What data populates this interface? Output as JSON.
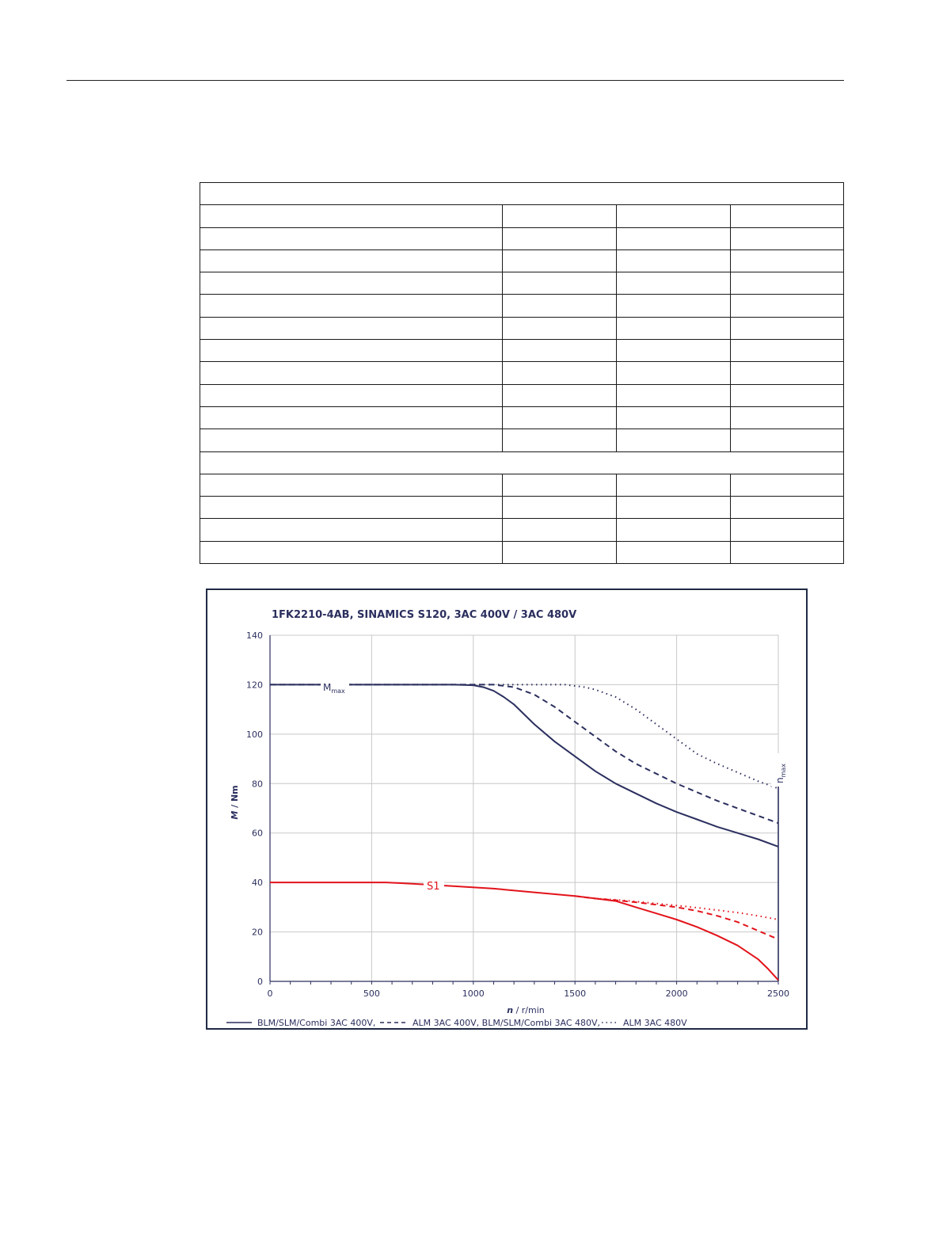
{
  "table": {
    "rows": 17
  },
  "chart_data": {
    "type": "line",
    "title": "1FK2210-4AB,  SINAMICS S120,  3AC 400V / 3AC 480V",
    "xlabel_var": "n",
    "xlabel_unit": " / r/min",
    "ylabel_var": "M",
    "ylabel_unit": " / Nm",
    "xlim": [
      0,
      2500
    ],
    "ylim": [
      0,
      140
    ],
    "xticks": [
      "0",
      "500",
      "1000",
      "1500",
      "2000",
      "2500"
    ],
    "yticks": [
      "0",
      "20",
      "40",
      "60",
      "80",
      "100",
      "120",
      "140"
    ],
    "grid": true,
    "annotations": {
      "mmax_base": "M",
      "mmax_sub": "max",
      "nmax_base": "n",
      "nmax_sub": "max",
      "s1": "S1"
    },
    "legend": [
      {
        "label": "BLM/SLM/Combi 3AC 400V,",
        "style": "solid"
      },
      {
        "label": "ALM 3AC 400V, BLM/SLM/Combi 3AC 480V,",
        "style": "dashed"
      },
      {
        "label": "ALM 3AC 480V",
        "style": "dotted"
      }
    ],
    "colors": {
      "mmax": "#2b2f5e",
      "s1": "#e3131b",
      "grid": "#c8c8c8",
      "axis": "#2b2f5e"
    },
    "series": [
      {
        "name": "BLM/SLM/Combi 3AC 400V,",
        "group": "Mmax",
        "style": "solid",
        "x": [
          0,
          900,
          1000,
          1050,
          1100,
          1150,
          1200,
          1250,
          1300,
          1400,
          1500,
          1600,
          1700,
          1800,
          1900,
          2000,
          2100,
          2200,
          2300,
          2400,
          2500
        ],
        "y": [
          120,
          120,
          119.8,
          119,
          117.5,
          115,
          112,
          108,
          104,
          97,
          91,
          85,
          80,
          76,
          72,
          68.5,
          65.5,
          62.5,
          60,
          57.5,
          54.5
        ]
      },
      {
        "name": "ALM 3AC 400V, BLM/SLM/Combi 3AC 480V,",
        "group": "Mmax",
        "style": "dashed",
        "x": [
          0,
          1000,
          1100,
          1200,
          1300,
          1400,
          1500,
          1600,
          1700,
          1800,
          1900,
          2000,
          2100,
          2200,
          2300,
          2400,
          2500
        ],
        "y": [
          120,
          120,
          120,
          119,
          116,
          111,
          105,
          99,
          93,
          88,
          84,
          80,
          76.5,
          73,
          70,
          67,
          64
        ]
      },
      {
        "name": "ALM 3AC 480V",
        "group": "Mmax",
        "style": "dotted",
        "x": [
          0,
          1000,
          1300,
          1450,
          1550,
          1600,
          1700,
          1800,
          1900,
          2000,
          2100,
          2200,
          2300,
          2400,
          2500
        ],
        "y": [
          120,
          120,
          120,
          120,
          119,
          118,
          115,
          110,
          104,
          98,
          92,
          88,
          84.5,
          81,
          78
        ]
      },
      {
        "name": "BLM/SLM/Combi 3AC 400V,",
        "group": "S1",
        "style": "solid",
        "x": [
          0,
          570,
          700,
          900,
          1100,
          1300,
          1500,
          1600,
          1700,
          1800,
          1900,
          2000,
          2100,
          2200,
          2300,
          2400,
          2450,
          2500
        ],
        "y": [
          40,
          40,
          39.5,
          38.5,
          37.5,
          36,
          34.5,
          33.5,
          32.5,
          30,
          27.5,
          25,
          22,
          18.5,
          14.5,
          9,
          5,
          0.5
        ]
      },
      {
        "name": "ALM 3AC 400V, BLM/SLM/Combi 3AC 480V,",
        "group": "S1",
        "style": "dashed",
        "x": [
          1500,
          1600,
          1700,
          1800,
          1900,
          2000,
          2100,
          2200,
          2300,
          2400,
          2500
        ],
        "y": [
          34.5,
          33.5,
          32.8,
          32,
          31,
          30,
          28.5,
          26.5,
          24,
          20.5,
          17
        ]
      },
      {
        "name": "ALM 3AC 480V",
        "group": "S1",
        "style": "dotted",
        "x": [
          1600,
          1700,
          1800,
          1900,
          2000,
          2100,
          2200,
          2300,
          2400,
          2500
        ],
        "y": [
          33.5,
          33,
          32.3,
          31.5,
          30.7,
          29.8,
          28.8,
          27.8,
          26.5,
          25
        ]
      }
    ]
  }
}
